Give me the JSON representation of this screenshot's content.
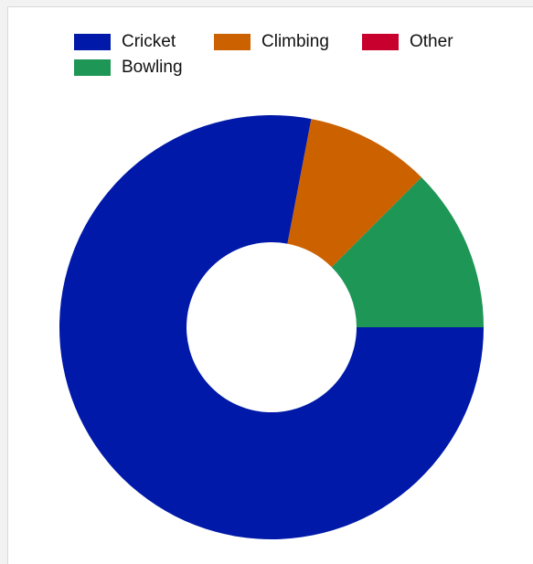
{
  "chart_data": {
    "type": "pie",
    "donut": true,
    "title": "",
    "legend_position": "top",
    "categories": [
      "Cricket",
      "Climbing",
      "Other",
      "Bowling"
    ],
    "values": [
      78,
      9.5,
      0,
      12.5
    ],
    "colors": [
      "#0019a8",
      "#cc6100",
      "#c8002e",
      "#1e9656"
    ],
    "slice_order": [
      "Cricket",
      "Climbing",
      "Other",
      "Bowling"
    ],
    "start_direction": "right",
    "slice_direction": "clockwise"
  },
  "legend": {
    "items": [
      {
        "label": "Cricket",
        "color": "#0019a8"
      },
      {
        "label": "Climbing",
        "color": "#cc6100"
      },
      {
        "label": "Other",
        "color": "#c8002e"
      },
      {
        "label": "Bowling",
        "color": "#1e9656"
      }
    ]
  }
}
